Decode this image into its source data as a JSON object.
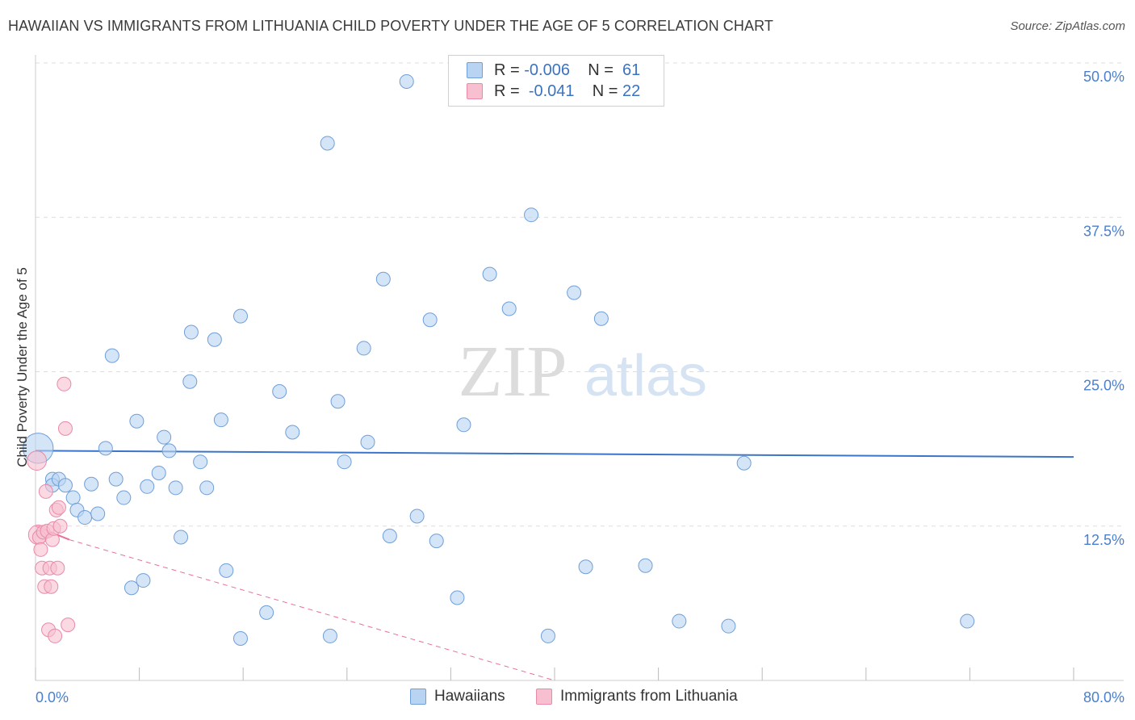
{
  "title": "HAWAIIAN VS IMMIGRANTS FROM LITHUANIA CHILD POVERTY UNDER THE AGE OF 5 CORRELATION CHART",
  "source": "Source: ZipAtlas.com",
  "watermark": {
    "zip": "ZIP",
    "atlas": "atlas"
  },
  "legend": {
    "rows": [
      {
        "r_label": "R =",
        "r_value": "-0.006",
        "n_label": "N =",
        "n_value": "61"
      },
      {
        "r_label": "R =",
        "r_value": "-0.041",
        "n_label": "N =",
        "n_value": "22"
      }
    ]
  },
  "bottom_legend": [
    "Hawaiians",
    "Immigrants from Lithuania"
  ],
  "colors": {
    "blue_fill": "#b9d3f3",
    "blue_stroke": "#6f9fd8",
    "blue_line": "#3a75c9",
    "pink_fill": "#f7bfd0",
    "pink_stroke": "#e98aa8",
    "pink_line": "#e8709a",
    "grid": "#dddddd",
    "tick_label": "#4a7fcf"
  },
  "chart_data": {
    "type": "scatter",
    "title": "HAWAIIAN VS IMMIGRANTS FROM LITHUANIA CHILD POVERTY UNDER THE AGE OF 5 CORRELATION CHART",
    "xlabel": "",
    "ylabel": "Child Poverty Under the Age of 5",
    "xlim": [
      0,
      80
    ],
    "ylim": [
      0,
      50
    ],
    "x_tick_labels": [
      "0.0%",
      "80.0%"
    ],
    "y_ticks": [
      12.5,
      25.0,
      37.5,
      50.0
    ],
    "y_tick_labels": [
      "12.5%",
      "25.0%",
      "37.5%",
      "50.0%"
    ],
    "grid": true,
    "series": [
      {
        "name": "Hawaiians",
        "points": [
          [
            0.2,
            18.8,
            2.2
          ],
          [
            1.3,
            16.3,
            1
          ],
          [
            1.3,
            15.8,
            1
          ],
          [
            1.8,
            16.3,
            1
          ],
          [
            2.3,
            15.8,
            1
          ],
          [
            2.9,
            14.8,
            1
          ],
          [
            3.2,
            13.8,
            1
          ],
          [
            3.8,
            13.2,
            1
          ],
          [
            4.3,
            15.9,
            1
          ],
          [
            4.8,
            13.5,
            1
          ],
          [
            5.4,
            18.8,
            1
          ],
          [
            5.9,
            26.3,
            1
          ],
          [
            6.2,
            16.3,
            1
          ],
          [
            6.8,
            14.8,
            1
          ],
          [
            7.4,
            7.5,
            1
          ],
          [
            7.8,
            21.0,
            1
          ],
          [
            8.3,
            8.1,
            1
          ],
          [
            8.6,
            15.7,
            1
          ],
          [
            9.5,
            16.8,
            1
          ],
          [
            9.9,
            19.7,
            1
          ],
          [
            10.3,
            18.6,
            1
          ],
          [
            10.8,
            15.6,
            1
          ],
          [
            11.2,
            11.6,
            1
          ],
          [
            12.0,
            28.2,
            1
          ],
          [
            11.9,
            24.2,
            1
          ],
          [
            12.7,
            17.7,
            1
          ],
          [
            13.2,
            15.6,
            1
          ],
          [
            13.8,
            27.6,
            1
          ],
          [
            14.3,
            21.1,
            1
          ],
          [
            14.7,
            8.9,
            1
          ],
          [
            15.8,
            29.5,
            1
          ],
          [
            15.8,
            3.4,
            1
          ],
          [
            17.8,
            5.5,
            1
          ],
          [
            18.8,
            23.4,
            1
          ],
          [
            19.8,
            20.1,
            1
          ],
          [
            22.5,
            43.5,
            1
          ],
          [
            22.7,
            3.6,
            1
          ],
          [
            23.3,
            22.6,
            1
          ],
          [
            23.8,
            17.7,
            1
          ],
          [
            25.3,
            26.9,
            1
          ],
          [
            25.6,
            19.3,
            1
          ],
          [
            26.8,
            32.5,
            1
          ],
          [
            27.3,
            11.7,
            1
          ],
          [
            28.6,
            48.5,
            1
          ],
          [
            29.4,
            13.3,
            1
          ],
          [
            30.4,
            29.2,
            1
          ],
          [
            30.9,
            11.3,
            1
          ],
          [
            32.5,
            6.7,
            1
          ],
          [
            33.0,
            20.7,
            1
          ],
          [
            35.0,
            32.9,
            1
          ],
          [
            36.5,
            30.1,
            1
          ],
          [
            38.2,
            37.7,
            1
          ],
          [
            39.5,
            3.6,
            1
          ],
          [
            41.5,
            31.4,
            1
          ],
          [
            42.4,
            9.2,
            1
          ],
          [
            43.6,
            29.3,
            1
          ],
          [
            47.0,
            9.3,
            1
          ],
          [
            49.6,
            4.8,
            1
          ],
          [
            53.4,
            4.4,
            1
          ],
          [
            54.6,
            17.6,
            1
          ],
          [
            71.8,
            4.8,
            1
          ]
        ],
        "trend": {
          "x": [
            0,
            80
          ],
          "y": [
            18.6,
            18.1
          ]
        }
      },
      {
        "name": "Immigrants from Lithuania",
        "points": [
          [
            0.1,
            17.8,
            1.4
          ],
          [
            0.2,
            11.8,
            1.4
          ],
          [
            0.3,
            11.6,
            1
          ],
          [
            0.4,
            10.6,
            1
          ],
          [
            0.5,
            9.1,
            1
          ],
          [
            0.6,
            12.0,
            1
          ],
          [
            0.7,
            7.6,
            1
          ],
          [
            0.8,
            15.3,
            1
          ],
          [
            0.9,
            12.1,
            1
          ],
          [
            1.0,
            4.1,
            1
          ],
          [
            1.1,
            9.1,
            1
          ],
          [
            1.2,
            7.6,
            1
          ],
          [
            1.3,
            11.4,
            1
          ],
          [
            1.4,
            12.3,
            1
          ],
          [
            1.5,
            3.6,
            1
          ],
          [
            1.6,
            13.8,
            1
          ],
          [
            1.7,
            9.1,
            1
          ],
          [
            1.8,
            14.0,
            1
          ],
          [
            1.9,
            12.5,
            1
          ],
          [
            2.2,
            24.0,
            1
          ],
          [
            2.3,
            20.4,
            1
          ],
          [
            2.5,
            4.5,
            1
          ]
        ],
        "trend_solid": {
          "x": [
            0,
            2.6
          ],
          "y": [
            12.5,
            11.4
          ]
        },
        "trend_dashed": {
          "x": [
            2.6,
            40
          ],
          "y": [
            11.4,
            0
          ]
        }
      }
    ]
  }
}
